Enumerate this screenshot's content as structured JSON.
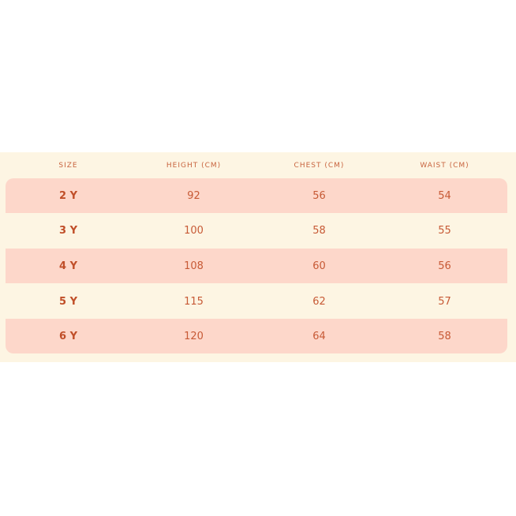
{
  "table": {
    "headers": [
      "SIZE",
      "HEIGHT (CM)",
      "CHEST (CM)",
      "WAIST (CM)"
    ],
    "rows": [
      [
        "2 Y",
        "92",
        "56",
        "54"
      ],
      [
        "3 Y",
        "100",
        "58",
        "55"
      ],
      [
        "4 Y",
        "108",
        "60",
        "56"
      ],
      [
        "5 Y",
        "115",
        "62",
        "57"
      ],
      [
        "6 Y",
        "120",
        "64",
        "58"
      ]
    ]
  },
  "colors": {
    "background": "#fdf5e3",
    "stripe": "#fdd7ca",
    "text": "#c75a36"
  }
}
